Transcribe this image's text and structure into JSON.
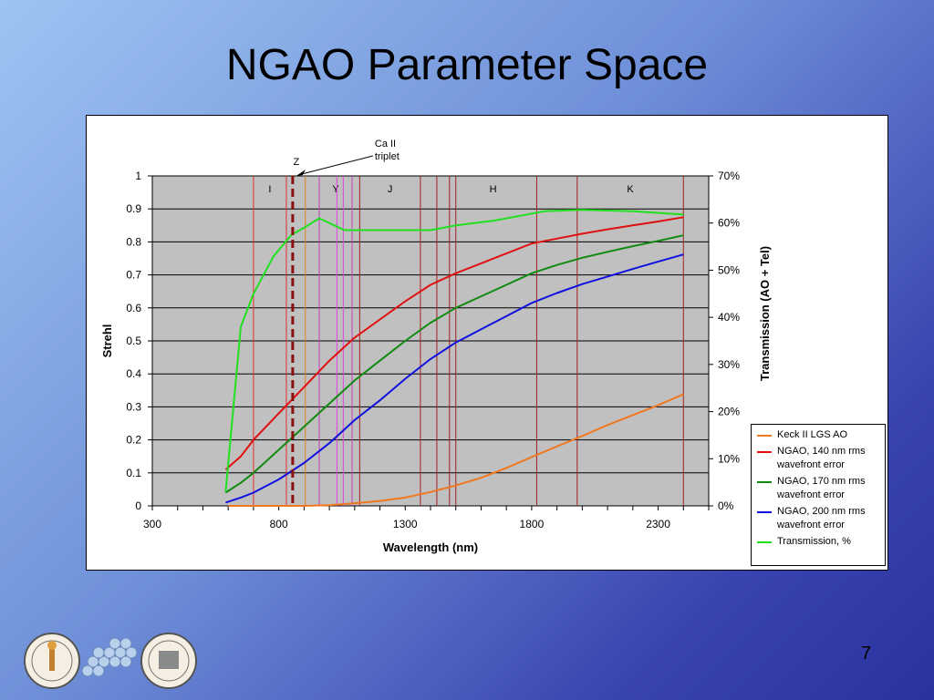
{
  "slide": {
    "title": "NGAO Parameter Space",
    "page_number": "7"
  },
  "chart_data": {
    "type": "line",
    "xlabel": "Wavelength (nm)",
    "ylabel": "Strehl",
    "y2label": "Transmission (AO + Tel)",
    "xlim": [
      300,
      2500
    ],
    "ylim": [
      0,
      1
    ],
    "y2lim": [
      0,
      0.7
    ],
    "x_ticks": [
      300,
      800,
      1300,
      1800,
      2300
    ],
    "y_ticks": [
      "0",
      "0.1",
      "0.2",
      "0.3",
      "0.4",
      "0.5",
      "0.6",
      "0.7",
      "0.8",
      "0.9",
      "1"
    ],
    "y2_ticks": [
      "0%",
      "10%",
      "20%",
      "30%",
      "40%",
      "50%",
      "60%",
      "70%"
    ],
    "grid": true,
    "plot_background": "#c0c0c0",
    "legend_position": "bottom-right",
    "bands": [
      {
        "label": "I",
        "start": 700,
        "end": 830,
        "color": "#e03030"
      },
      {
        "label": "Y",
        "start": 960,
        "end": 1090,
        "color": "#c040c0"
      },
      {
        "label": "J",
        "start": 1120,
        "end": 1360,
        "color": "#a02020"
      },
      {
        "label": "H",
        "start": 1475,
        "end": 1820,
        "color": "#a02020"
      },
      {
        "label": "K",
        "start": 1980,
        "end": 2400,
        "color": "#a02020"
      }
    ],
    "extra_lines": [
      {
        "x": 905,
        "color": "#e08020"
      },
      {
        "x": 1030,
        "color": "#e040e0"
      },
      {
        "x": 1055,
        "color": "#e040e0"
      },
      {
        "x": 1425,
        "color": "#a02020"
      },
      {
        "x": 1500,
        "color": "#a02020"
      }
    ],
    "markers": [
      {
        "label": "Z",
        "x": 855,
        "style": "dashed"
      }
    ],
    "annotations": [
      {
        "text_lines": [
          "Ca II",
          "triplet"
        ],
        "x": 855
      }
    ],
    "series": [
      {
        "name": "Keck II LGS AO",
        "color": "#f07820",
        "axis": "left",
        "x": [
          600,
          700,
          800,
          900,
          1000,
          1100,
          1200,
          1300,
          1400,
          1500,
          1600,
          1700,
          1800,
          1900,
          2000,
          2100,
          2200,
          2300,
          2400
        ],
        "y": [
          0,
          0,
          0,
          0,
          0.002,
          0.008,
          0.015,
          0.025,
          0.042,
          0.062,
          0.085,
          0.115,
          0.148,
          0.18,
          0.212,
          0.245,
          0.275,
          0.305,
          0.338
        ]
      },
      {
        "name": "NGAO, 140 nm rms wavefront error",
        "color": "#e01010",
        "axis": "left",
        "x": [
          590,
          650,
          700,
          800,
          900,
          1000,
          1100,
          1200,
          1300,
          1400,
          1500,
          1600,
          1700,
          1800,
          1900,
          2000,
          2100,
          2200,
          2300,
          2400
        ],
        "y": [
          0.11,
          0.15,
          0.2,
          0.28,
          0.36,
          0.44,
          0.51,
          0.565,
          0.62,
          0.67,
          0.705,
          0.735,
          0.765,
          0.795,
          0.81,
          0.825,
          0.838,
          0.85,
          0.862,
          0.875
        ]
      },
      {
        "name": "NGAO, 170 nm rms wavefront error",
        "color": "#108a10",
        "axis": "left",
        "x": [
          590,
          650,
          700,
          800,
          900,
          1000,
          1100,
          1200,
          1300,
          1400,
          1500,
          1600,
          1700,
          1800,
          1900,
          2000,
          2100,
          2200,
          2300,
          2400
        ],
        "y": [
          0.04,
          0.07,
          0.1,
          0.17,
          0.24,
          0.31,
          0.38,
          0.44,
          0.5,
          0.555,
          0.6,
          0.635,
          0.67,
          0.705,
          0.73,
          0.752,
          0.77,
          0.787,
          0.803,
          0.82
        ]
      },
      {
        "name": "NGAO, 200 nm rms wavefront error",
        "color": "#1010e0",
        "axis": "left",
        "x": [
          590,
          650,
          700,
          800,
          900,
          1000,
          1100,
          1200,
          1300,
          1400,
          1500,
          1600,
          1700,
          1800,
          1900,
          2000,
          2100,
          2200,
          2300,
          2400
        ],
        "y": [
          0.01,
          0.025,
          0.04,
          0.08,
          0.13,
          0.19,
          0.26,
          0.32,
          0.385,
          0.445,
          0.495,
          0.535,
          0.575,
          0.615,
          0.645,
          0.672,
          0.695,
          0.718,
          0.74,
          0.762
        ]
      },
      {
        "name": "Transmission, %",
        "color": "#20e020",
        "axis": "right",
        "x": [
          590,
          650,
          700,
          780,
          850,
          900,
          960,
          1020,
          1060,
          1100,
          1200,
          1400,
          1500,
          1650,
          1850,
          2000,
          2200,
          2400
        ],
        "y": [
          0.03,
          0.38,
          0.45,
          0.53,
          0.575,
          0.59,
          0.61,
          0.595,
          0.585,
          0.585,
          0.585,
          0.585,
          0.595,
          0.605,
          0.625,
          0.628,
          0.625,
          0.618
        ]
      }
    ]
  }
}
